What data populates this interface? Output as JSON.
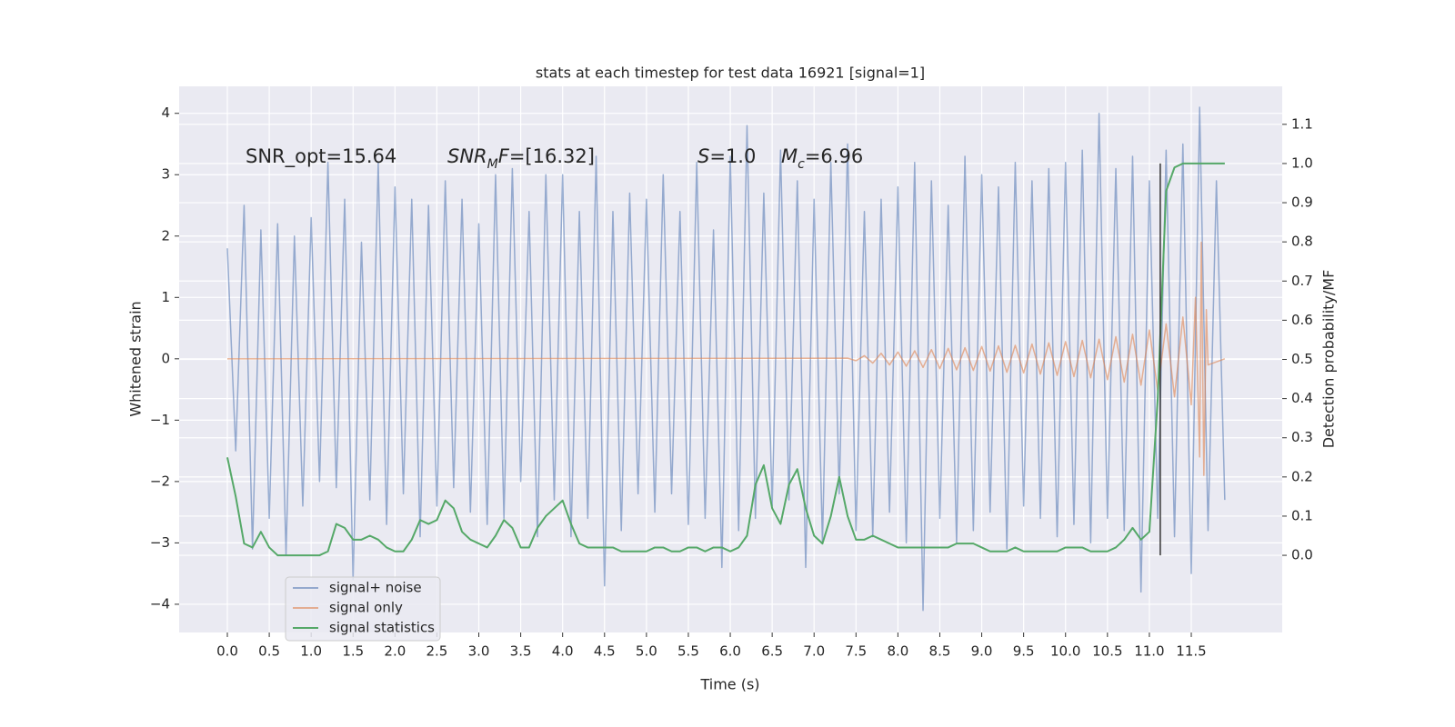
{
  "chart_data": {
    "type": "line",
    "title": "stats at each timestep for test data 16921 [signal=1]",
    "xlabel": "Time (s)",
    "ylabel": "Whitened strain",
    "y2label": "Detection probability/MF",
    "x": [
      0,
      0.1,
      0.2,
      0.3,
      0.4,
      0.5,
      0.6,
      0.7,
      0.8,
      0.9,
      1,
      1.1,
      1.2,
      1.3,
      1.4,
      1.5,
      1.6,
      1.7,
      1.8,
      1.9,
      2,
      2.1,
      2.2,
      2.3,
      2.4,
      2.5,
      2.6,
      2.7,
      2.8,
      2.9,
      3,
      3.1,
      3.2,
      3.3,
      3.4,
      3.5,
      3.6,
      3.7,
      3.8,
      3.9,
      4,
      4.1,
      4.2,
      4.3,
      4.4,
      4.5,
      4.6,
      4.7,
      4.8,
      4.9,
      5,
      5.1,
      5.2,
      5.3,
      5.4,
      5.5,
      5.6,
      5.7,
      5.8,
      5.9,
      6,
      6.1,
      6.2,
      6.3,
      6.4,
      6.5,
      6.6,
      6.7,
      6.8,
      6.9,
      7,
      7.1,
      7.2,
      7.3,
      7.4,
      7.5,
      7.6,
      7.7,
      7.8,
      7.9,
      8,
      8.1,
      8.2,
      8.3,
      8.4,
      8.5,
      8.6,
      8.7,
      8.8,
      8.9,
      9,
      9.1,
      9.2,
      9.3,
      9.4,
      9.5,
      9.6,
      9.7,
      9.8,
      9.9,
      10,
      10.1,
      10.2,
      10.3,
      10.4,
      10.5,
      10.6,
      10.7,
      10.8,
      10.9,
      11,
      11.1,
      11.2,
      11.3,
      11.4,
      11.5,
      11.6,
      11.7,
      11.8,
      11.9
    ],
    "series": [
      {
        "name": "signal+ noise",
        "color": "#4c72b0",
        "alpha": 0.55,
        "values": [
          1.8,
          -1.5,
          2.5,
          -3.1,
          2.1,
          -2.6,
          2.2,
          -3.2,
          2.0,
          -2.4,
          2.3,
          -2.0,
          3.2,
          -2.1,
          2.6,
          -3.6,
          1.9,
          -2.3,
          3.2,
          -2.7,
          2.8,
          -2.2,
          2.6,
          -2.9,
          2.5,
          -2.4,
          2.9,
          -2.1,
          2.6,
          -2.5,
          2.2,
          -2.7,
          3.0,
          -2.6,
          3.1,
          -2.0,
          2.4,
          -2.9,
          3.0,
          -2.3,
          3.0,
          -2.9,
          2.4,
          -2.6,
          3.3,
          -3.7,
          2.4,
          -2.8,
          2.7,
          -2.2,
          2.6,
          -2.5,
          3.0,
          -2.2,
          2.4,
          -2.7,
          3.2,
          -2.6,
          2.1,
          -3.4,
          3.3,
          -2.8,
          3.8,
          -2.6,
          2.7,
          -2.4,
          3.4,
          -2.3,
          2.9,
          -3.4,
          2.6,
          -3.0,
          3.2,
          -2.2,
          3.5,
          -2.8,
          2.4,
          -2.9,
          2.6,
          -2.5,
          2.8,
          -3.0,
          3.2,
          -4.1,
          2.9,
          -2.6,
          2.5,
          -3.0,
          3.3,
          -2.8,
          3.0,
          -2.5,
          2.8,
          -3.1,
          3.2,
          -2.4,
          2.9,
          -2.6,
          3.1,
          -2.9,
          3.2,
          -2.7,
          3.4,
          -3.0,
          4.0,
          -2.6,
          3.1,
          -2.8,
          3.3,
          -3.8,
          2.9,
          -2.6,
          3.4,
          -2.9,
          3.5,
          -3.5,
          4.1,
          -2.8,
          2.9,
          -2.3
        ]
      },
      {
        "name": "signal only",
        "color": "#dd8452",
        "alpha": 0.6,
        "x": [
          0,
          7.4,
          7.5,
          7.6,
          7.7,
          7.8,
          7.9,
          8,
          8.1,
          8.2,
          8.3,
          8.4,
          8.5,
          8.6,
          8.7,
          8.8,
          8.9,
          9,
          9.1,
          9.2,
          9.3,
          9.4,
          9.5,
          9.6,
          9.7,
          9.8,
          9.9,
          10,
          10.1,
          10.2,
          10.3,
          10.4,
          10.5,
          10.6,
          10.7,
          10.8,
          10.9,
          11,
          11.1,
          11.2,
          11.3,
          11.4,
          11.5,
          11.55,
          11.6,
          11.62,
          11.65,
          11.68,
          11.7,
          11.9
        ],
        "values": [
          0,
          0.01,
          -0.03,
          0.05,
          -0.07,
          0.09,
          -0.1,
          0.11,
          -0.12,
          0.13,
          -0.14,
          0.15,
          -0.16,
          0.17,
          -0.18,
          0.18,
          -0.19,
          0.2,
          -0.2,
          0.21,
          -0.22,
          0.22,
          -0.23,
          0.24,
          -0.25,
          0.26,
          -0.27,
          0.28,
          -0.29,
          0.3,
          -0.31,
          0.32,
          -0.34,
          0.36,
          -0.38,
          0.4,
          -0.43,
          0.47,
          -0.52,
          0.57,
          -0.62,
          0.68,
          -0.75,
          1.0,
          -1.6,
          1.9,
          -1.9,
          0.8,
          -0.1,
          0
        ]
      },
      {
        "name": "signal statistics",
        "color": "#55a868",
        "alpha": 1,
        "axis": "y2",
        "values": [
          0.25,
          0.15,
          0.03,
          0.02,
          0.06,
          0.02,
          0,
          0,
          0,
          0,
          0,
          0,
          0.01,
          0.08,
          0.07,
          0.04,
          0.04,
          0.05,
          0.04,
          0.02,
          0.01,
          0.01,
          0.04,
          0.09,
          0.08,
          0.09,
          0.14,
          0.12,
          0.06,
          0.04,
          0.03,
          0.02,
          0.05,
          0.09,
          0.07,
          0.02,
          0.02,
          0.07,
          0.1,
          0.12,
          0.14,
          0.08,
          0.03,
          0.02,
          0.02,
          0.02,
          0.02,
          0.01,
          0.01,
          0.01,
          0.01,
          0.02,
          0.02,
          0.01,
          0.01,
          0.02,
          0.02,
          0.01,
          0.02,
          0.02,
          0.01,
          0.02,
          0.05,
          0.18,
          0.23,
          0.12,
          0.08,
          0.18,
          0.22,
          0.12,
          0.05,
          0.03,
          0.1,
          0.2,
          0.1,
          0.04,
          0.04,
          0.05,
          0.04,
          0.03,
          0.02,
          0.02,
          0.02,
          0.02,
          0.02,
          0.02,
          0.02,
          0.03,
          0.03,
          0.03,
          0.02,
          0.01,
          0.01,
          0.01,
          0.02,
          0.01,
          0.01,
          0.01,
          0.01,
          0.01,
          0.02,
          0.02,
          0.02,
          0.01,
          0.01,
          0.01,
          0.02,
          0.04,
          0.07,
          0.04,
          0.06,
          0.4,
          0.93,
          0.99,
          1.0,
          1.0,
          1.0,
          1.0,
          1.0,
          1.0
        ]
      }
    ],
    "vline": {
      "x": 11.13,
      "y2": [
        0,
        1.0
      ],
      "color": "#333333"
    },
    "annotations": [
      {
        "parts": [
          {
            "text": "SNR_opt=15.64"
          }
        ]
      },
      {
        "parts": [
          {
            "text": "SNR",
            "style": "italic"
          },
          {
            "text": "M",
            "style": "italic-sub"
          },
          {
            "text": "F",
            "style": "italic"
          },
          {
            "text": "=[16.32]"
          }
        ]
      },
      {
        "parts": [
          {
            "text": "S",
            "style": "italic"
          },
          {
            "text": "=1.0"
          }
        ]
      },
      {
        "parts": [
          {
            "text": "M",
            "style": "italic"
          },
          {
            "text": "c",
            "style": "italic-sub"
          },
          {
            "text": "=6.96"
          }
        ]
      }
    ],
    "xlim": [
      -0.575,
      12.585
    ],
    "ylim": [
      -4.46,
      4.44
    ],
    "y2lim": [
      -0.197,
      1.197
    ],
    "xticks": [
      {
        "value": 0,
        "label": "0.0"
      },
      0.5,
      {
        "value": 1,
        "label": "1.0"
      },
      1.5,
      {
        "value": 2,
        "label": "2.0"
      },
      2.5,
      {
        "value": 3,
        "label": "3.0"
      },
      3.5,
      {
        "value": 4,
        "label": "4.0"
      },
      4.5,
      {
        "value": 5,
        "label": "5.0"
      },
      5.5,
      {
        "value": 6,
        "label": "6.0"
      },
      6.5,
      {
        "value": 7,
        "label": "7.0"
      },
      7.5,
      {
        "value": 8,
        "label": "8.0"
      },
      8.5,
      {
        "value": 9,
        "label": "9.0"
      },
      9.5,
      {
        "value": 10,
        "label": "10.0"
      },
      10.5,
      {
        "value": 11,
        "label": "11.0"
      },
      11.5
    ],
    "yticks": [
      {
        "value": -4,
        "label": "−4"
      },
      {
        "value": -3,
        "label": "−3"
      },
      {
        "value": -2,
        "label": "−2"
      },
      {
        "value": -1,
        "label": "−1"
      },
      0,
      1,
      2,
      3,
      4
    ],
    "y2ticks": [
      {
        "value": 0,
        "label": "0.0"
      },
      0.1,
      0.2,
      0.3,
      0.4,
      0.5,
      0.6,
      0.7,
      0.8,
      0.9,
      {
        "value": 1,
        "label": "1.0"
      },
      1.1
    ],
    "grid": true,
    "legend": "lower left"
  }
}
